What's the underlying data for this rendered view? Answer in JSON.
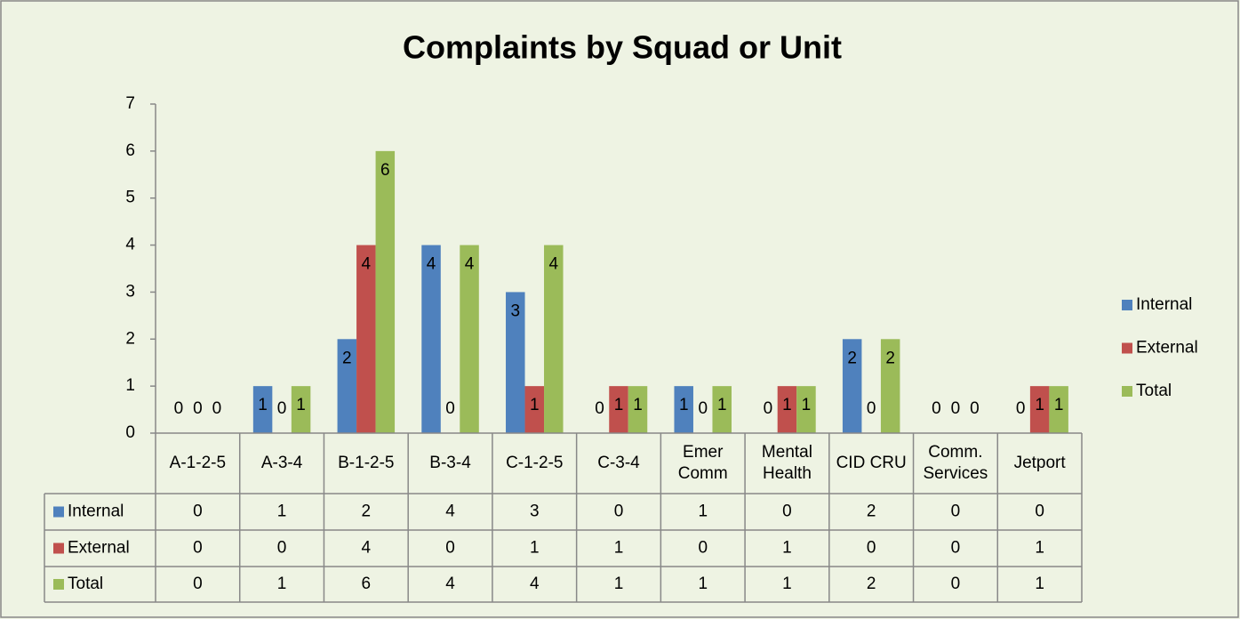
{
  "chart_data": {
    "type": "bar",
    "title": "Complaints by Squad or Unit",
    "categories": [
      "A-1-2-5",
      "A-3-4",
      "B-1-2-5",
      "B-3-4",
      "C-1-2-5",
      "C-3-4",
      "Emer Comm",
      "Mental Health",
      "CID CRU",
      "Comm. Services",
      "Jetport"
    ],
    "series": [
      {
        "name": "Internal",
        "color": "#4f81bd",
        "values": [
          0,
          1,
          2,
          4,
          3,
          0,
          1,
          0,
          2,
          0,
          0
        ]
      },
      {
        "name": "External",
        "color": "#c0504d",
        "values": [
          0,
          0,
          4,
          0,
          1,
          1,
          0,
          1,
          0,
          0,
          1
        ]
      },
      {
        "name": "Total",
        "color": "#9bbb59",
        "values": [
          0,
          1,
          6,
          4,
          4,
          1,
          1,
          1,
          2,
          0,
          1
        ]
      }
    ],
    "ylim": [
      0,
      7
    ],
    "yticks": [
      0,
      1,
      2,
      3,
      4,
      5,
      6,
      7
    ],
    "grid": false,
    "legend": "right",
    "data_table": true
  }
}
